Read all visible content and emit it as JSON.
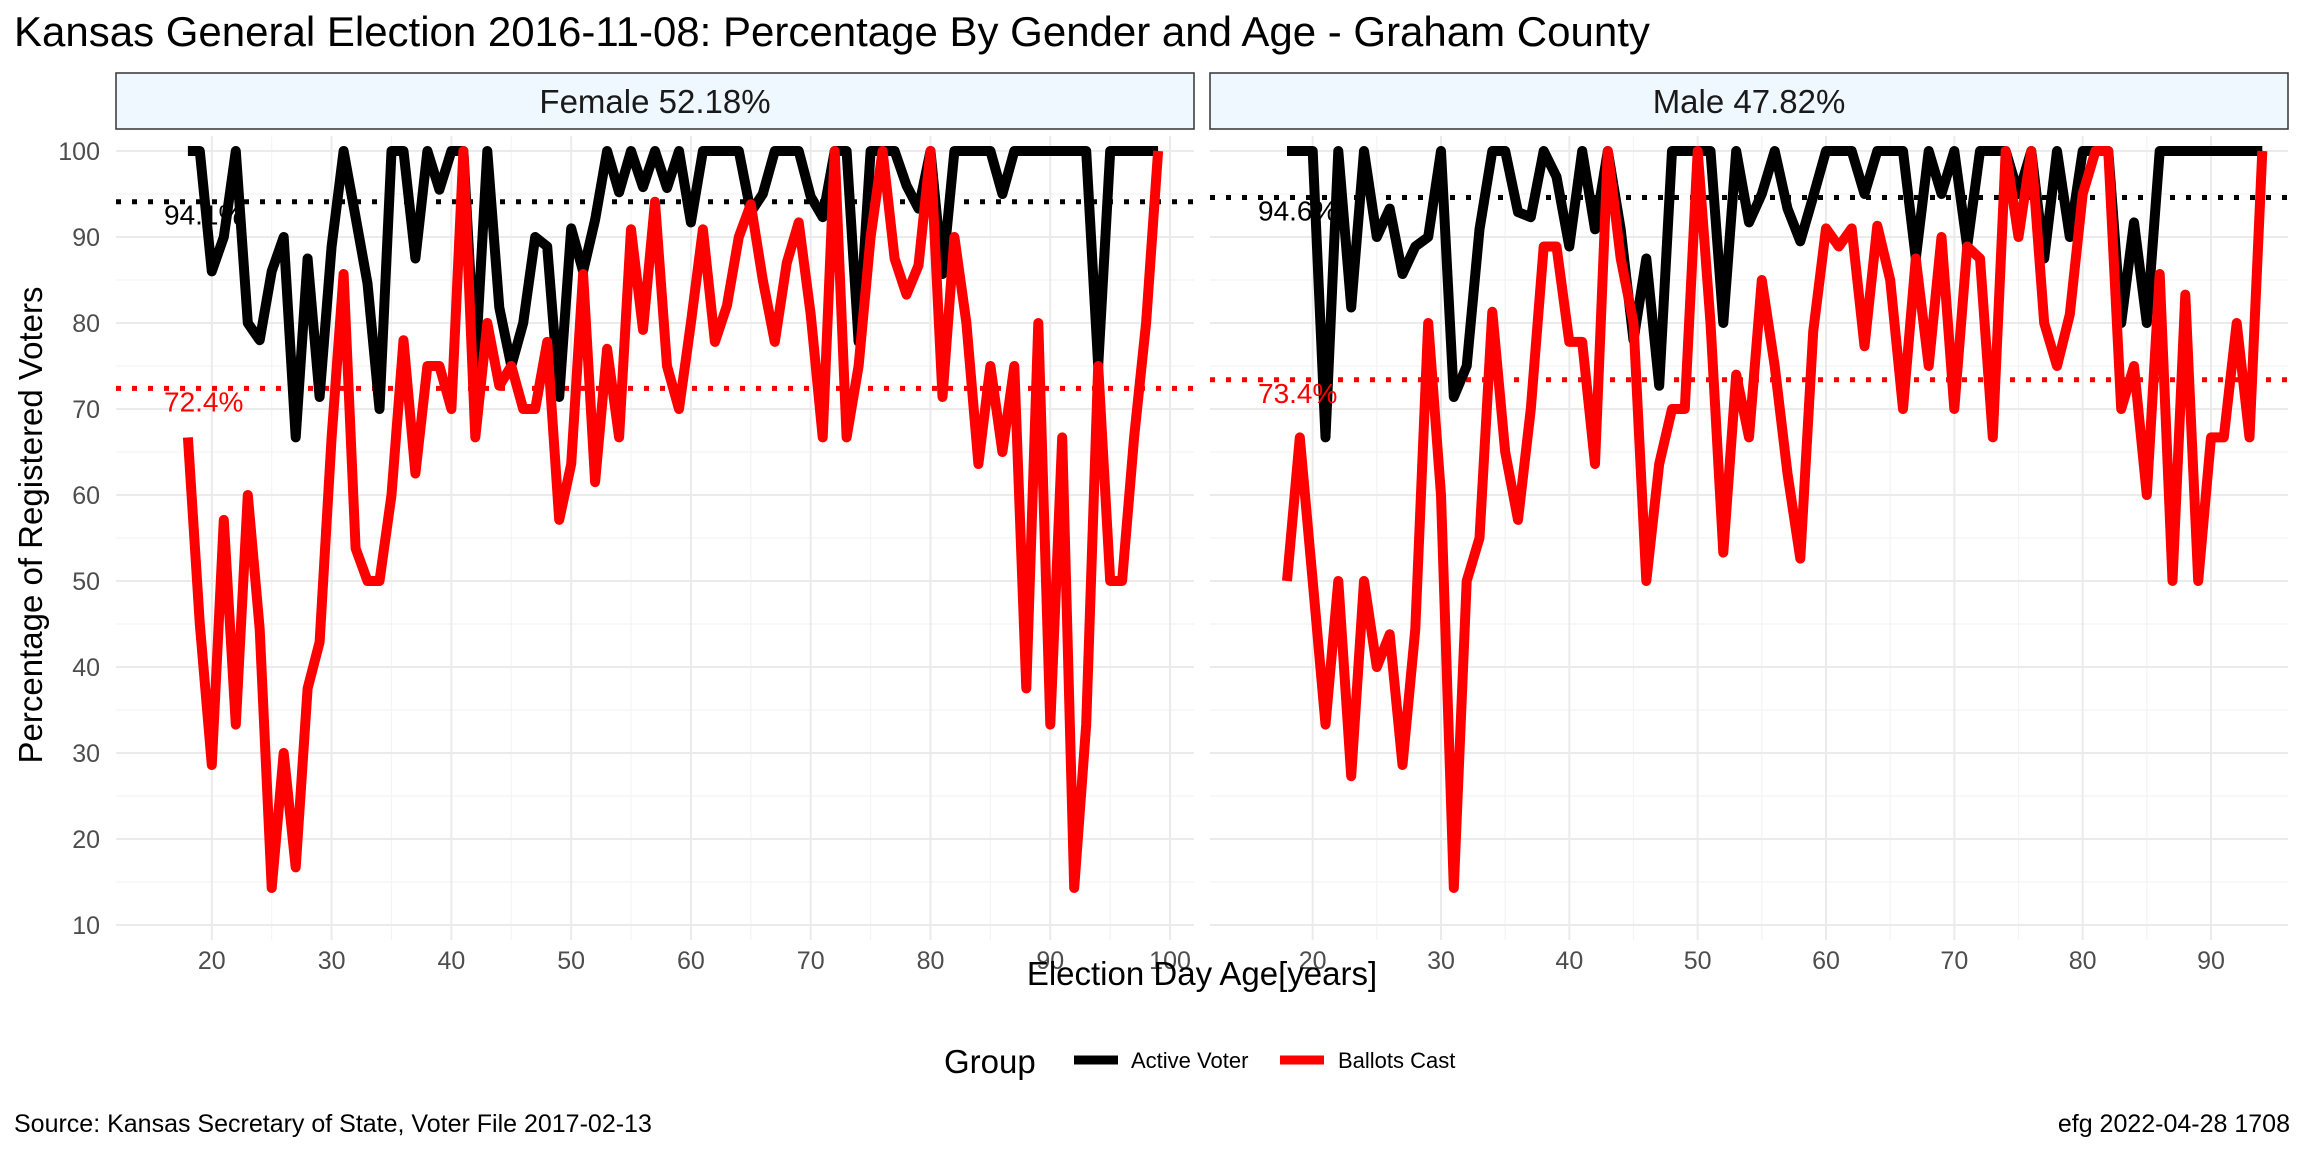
{
  "title": "Kansas General Election 2016-11-08:  Percentage By Gender and Age - Graham County",
  "caption_left": "Source:  Kansas Secretary of State, Voter File  2017-02-13",
  "caption_right": "efg 2022-04-28 1708",
  "colors": {
    "active": "#000000",
    "ballots": "#ff0000",
    "strip_fill": "#f0f8ff",
    "grid": "#ebebeb"
  },
  "chart_data": {
    "type": "line",
    "xlabel": "Election Day Age[years]",
    "ylabel": "Percentage of Registered Voters",
    "ylim": [
      10,
      100
    ],
    "yticks": [
      10,
      20,
      30,
      40,
      50,
      60,
      70,
      80,
      90,
      100
    ],
    "legend": {
      "title": "Group",
      "position": "bottom",
      "entries": [
        "Active Voter",
        "Ballots Cast"
      ]
    },
    "grid": true,
    "panels": [
      {
        "strip": "Female 52.18%",
        "xlim": [
          12,
          102
        ],
        "xticks": [
          20,
          30,
          40,
          50,
          60,
          70,
          80,
          90,
          100
        ],
        "ref_active": 94.1,
        "ref_active_label": "94.1%",
        "ref_ballots": 72.4,
        "ref_ballots_label": "72.4%",
        "series": [
          {
            "name": "Active Voter",
            "x": [
              18,
              19,
              20,
              21,
              22,
              23,
              24,
              25,
              26,
              27,
              28,
              29,
              30,
              31,
              32,
              33,
              34,
              35,
              36,
              37,
              38,
              39,
              40,
              41,
              42,
              43,
              44,
              45,
              46,
              47,
              48,
              49,
              50,
              51,
              52,
              53,
              54,
              55,
              56,
              57,
              58,
              59,
              60,
              61,
              62,
              63,
              64,
              65,
              66,
              67,
              68,
              69,
              70,
              71,
              72,
              73,
              74,
              75,
              76,
              77,
              78,
              79,
              80,
              81,
              82,
              83,
              84,
              85,
              86,
              87,
              88,
              89,
              90,
              91,
              92,
              93,
              94,
              95,
              96,
              97,
              98,
              99
            ],
            "y": [
              100,
              100,
              86,
              90,
              100,
              80,
              78,
              86,
              90,
              66.7,
              87.5,
              71.4,
              88.9,
              100,
              92.3,
              84.6,
              70,
              100,
              100,
              87.5,
              100,
              95.5,
              100,
              100,
              75,
              100,
              81.8,
              75,
              80,
              90,
              88.9,
              71.4,
              91,
              86,
              92,
              100,
              95.2,
              100,
              95.8,
              100,
              95.7,
              100,
              91.7,
              100,
              100,
              100,
              100,
              92.9,
              95,
              100,
              100,
              100,
              94.7,
              92.3,
              100,
              100,
              77.8,
              100,
              100,
              100,
              96,
              93.3,
              100,
              85.7,
              100,
              100,
              100,
              100,
              95,
              100,
              100,
              100,
              100,
              100,
              100,
              100,
              75,
              100,
              100,
              100,
              100,
              100
            ]
          },
          {
            "name": "Ballots Cast",
            "x": [
              18,
              19,
              20,
              21,
              22,
              23,
              24,
              25,
              26,
              27,
              28,
              29,
              30,
              31,
              32,
              33,
              34,
              35,
              36,
              37,
              38,
              39,
              40,
              41,
              42,
              43,
              44,
              45,
              46,
              47,
              48,
              49,
              50,
              51,
              52,
              53,
              54,
              55,
              56,
              57,
              58,
              59,
              60,
              61,
              62,
              63,
              64,
              65,
              66,
              67,
              68,
              69,
              70,
              71,
              72,
              73,
              74,
              75,
              76,
              77,
              78,
              79,
              80,
              81,
              82,
              83,
              84,
              85,
              86,
              87,
              88,
              89,
              90,
              91,
              92,
              93,
              94,
              95,
              96,
              97,
              98,
              99
            ],
            "y": [
              66.7,
              45,
              28.6,
              57.1,
              33.3,
              60,
              44.4,
              14.3,
              30,
              16.7,
              37.5,
              42.9,
              66.7,
              85.7,
              53.8,
              50,
              50,
              60,
              78,
              62.5,
              75,
              75,
              70,
              100,
              66.7,
              80,
              72.7,
              75,
              70,
              70,
              77.8,
              57.1,
              63.6,
              85.7,
              61.5,
              77,
              66.7,
              90.9,
              79.2,
              94.1,
              75,
              70,
              80,
              90.9,
              77.8,
              82,
              90,
              93.8,
              85,
              77.8,
              87,
              91.7,
              81,
              66.7,
              100,
              66.7,
              75,
              90,
              100,
              87.5,
              83.3,
              86.7,
              100,
              71.4,
              90,
              80,
              63.6,
              75,
              65,
              75,
              37.5,
              80,
              33.3,
              66.7,
              14.3,
              33.3,
              75,
              50,
              50,
              66.7,
              80,
              100
            ]
          }
        ]
      },
      {
        "strip": "Male 47.82%",
        "xlim": [
          12,
          96
        ],
        "xticks": [
          20,
          30,
          40,
          50,
          60,
          70,
          80,
          90
        ],
        "ref_active": 94.6,
        "ref_active_label": "94.6%",
        "ref_ballots": 73.4,
        "ref_ballots_label": "73.4%",
        "series": [
          {
            "name": "Active Voter",
            "x": [
              18,
              19,
              20,
              21,
              22,
              23,
              24,
              25,
              26,
              27,
              28,
              29,
              30,
              31,
              32,
              33,
              34,
              35,
              36,
              37,
              38,
              39,
              40,
              41,
              42,
              43,
              44,
              45,
              46,
              47,
              48,
              49,
              50,
              51,
              52,
              53,
              54,
              55,
              56,
              57,
              58,
              59,
              60,
              61,
              62,
              63,
              64,
              65,
              66,
              67,
              68,
              69,
              70,
              71,
              72,
              73,
              74,
              75,
              76,
              77,
              78,
              79,
              80,
              81,
              82,
              83,
              84,
              85,
              86,
              87,
              88,
              89,
              90,
              91,
              92,
              93,
              94
            ],
            "y": [
              100,
              100,
              100,
              66.7,
              100,
              81.8,
              100,
              90,
              93.3,
              85.7,
              88.9,
              90,
              100,
              71.4,
              75,
              90.9,
              100,
              100,
              92.9,
              92.3,
              100,
              97,
              88.9,
              100,
              90.9,
              100,
              90.9,
              78,
              87.5,
              72.7,
              100,
              100,
              100,
              100,
              80,
              100,
              91.7,
              95,
              100,
              93.3,
              89.5,
              94.7,
              100,
              100,
              100,
              95,
              100,
              100,
              100,
              87.5,
              100,
              95,
              100,
              88.9,
              100,
              100,
              100,
              95,
              100,
              87.5,
              100,
              90,
              100,
              100,
              100,
              80,
              91.7,
              80,
              100,
              100,
              100,
              100,
              100,
              100,
              100,
              100,
              100
            ]
          },
          {
            "name": "Ballots Cast",
            "x": [
              18,
              19,
              20,
              21,
              22,
              23,
              24,
              25,
              26,
              27,
              28,
              29,
              30,
              31,
              32,
              33,
              34,
              35,
              36,
              37,
              38,
              39,
              40,
              41,
              42,
              43,
              44,
              45,
              46,
              47,
              48,
              49,
              50,
              51,
              52,
              53,
              54,
              55,
              56,
              57,
              58,
              59,
              60,
              61,
              62,
              63,
              64,
              65,
              66,
              67,
              68,
              69,
              70,
              71,
              72,
              73,
              74,
              75,
              76,
              77,
              78,
              79,
              80,
              81,
              82,
              83,
              84,
              85,
              86,
              87,
              88,
              89,
              90,
              91,
              92,
              93,
              94
            ],
            "y": [
              50,
              66.7,
              50,
              33.3,
              50,
              27.3,
              50,
              40,
              43.8,
              28.6,
              44.4,
              80,
              60,
              14.3,
              50,
              55,
              81.3,
              65,
              57.1,
              70,
              88.9,
              88.9,
              77.8,
              77.8,
              63.6,
              100,
              87.5,
              80,
              50,
              63.6,
              70,
              70,
              100,
              80,
              53.3,
              74,
              66.7,
              85,
              75,
              62.5,
              52.6,
              79,
              91,
              88.9,
              91,
              77.3,
              91.3,
              85,
              70,
              87.5,
              75,
              90,
              70,
              88.9,
              87.5,
              66.7,
              100,
              90,
              100,
              80,
              75,
              81,
              95,
              100,
              100,
              70,
              75,
              60,
              85.7,
              50,
              83.3,
              50,
              66.7,
              66.7,
              80,
              66.7,
              100
            ]
          }
        ]
      }
    ]
  }
}
